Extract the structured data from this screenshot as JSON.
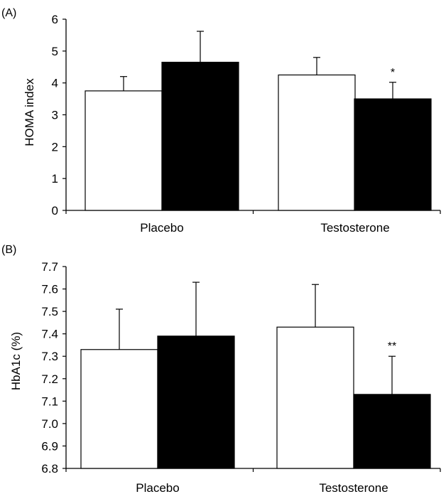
{
  "chart_data": [
    {
      "panel_label": "(A)",
      "type": "bar",
      "categories": [
        "Placebo",
        "Testosterone"
      ],
      "ylabel": "HOMA index",
      "ylim": [
        0,
        6
      ],
      "yticks": [
        "0",
        "1",
        "2",
        "3",
        "4",
        "5",
        "6"
      ],
      "grid": false,
      "series": [
        {
          "color": "#ffffff",
          "values": [
            3.75,
            4.25
          ],
          "errors": [
            0.45,
            0.55
          ]
        },
        {
          "color": "#000000",
          "values": [
            4.65,
            3.5
          ],
          "errors": [
            0.97,
            0.52
          ]
        }
      ],
      "annotations": [
        {
          "text": "*",
          "category_index": 1,
          "series_index": 1
        }
      ]
    },
    {
      "panel_label": "(B)",
      "type": "bar",
      "categories": [
        "Placebo",
        "Testosterone"
      ],
      "ylabel": "HbA1c (%)",
      "ylim": [
        6.8,
        7.7
      ],
      "yticks": [
        "6.8",
        "6.9",
        "7.0",
        "7.1",
        "7.2",
        "7.3",
        "7.4",
        "7.5",
        "7.6",
        "7.7"
      ],
      "grid": false,
      "series": [
        {
          "color": "#ffffff",
          "values": [
            7.33,
            7.43
          ],
          "errors": [
            0.18,
            0.19
          ]
        },
        {
          "color": "#000000",
          "values": [
            7.39,
            7.13
          ],
          "errors": [
            0.24,
            0.17
          ]
        }
      ],
      "annotations": [
        {
          "text": "**",
          "category_index": 1,
          "series_index": 1
        }
      ]
    }
  ]
}
